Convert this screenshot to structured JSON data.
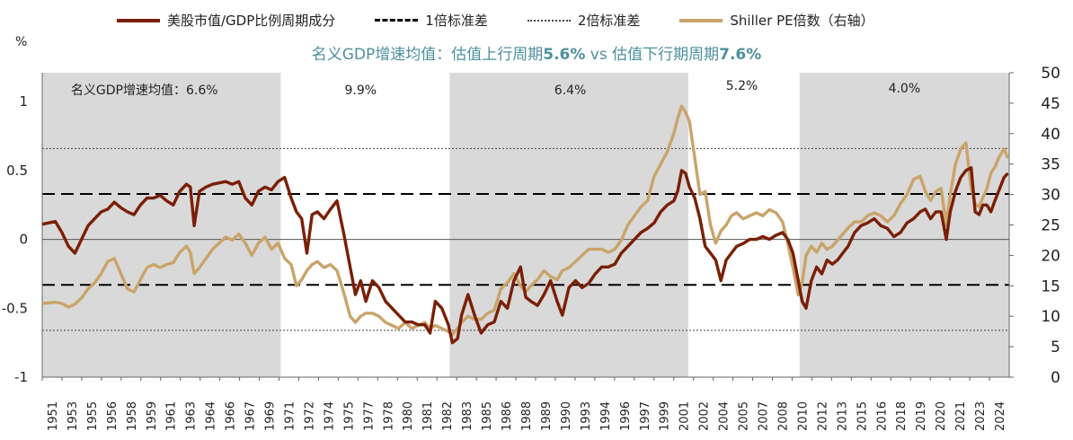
{
  "legend": {
    "mv_gdp": "美股市值/GDP比例周期成分",
    "sd1": "1倍标准差",
    "sd2": "2倍标准差",
    "shiller": "Shiller PE倍数（右轴）"
  },
  "subtitle": {
    "part1": "名义GDP增速均值：估值上行周期",
    "val1": "5.6%",
    "part2": " vs 估值下行期周期",
    "val2": "7.6%"
  },
  "y_unit": "%",
  "colors": {
    "mv_gdp": "#7a1f06",
    "shiller": "#c9a46a",
    "shade": "#d9d9d9",
    "subtitle": "#4d8f9e"
  },
  "chart_data": {
    "type": "line",
    "x_tick_labels": [
      "1951",
      "1953",
      "1955",
      "1956",
      "1958",
      "1959",
      "1961",
      "1963",
      "1964",
      "1966",
      "1967",
      "1969",
      "1971",
      "1972",
      "1974",
      "1975",
      "1977",
      "1978",
      "1980",
      "1981",
      "1982",
      "1983",
      "1985",
      "1986",
      "1988",
      "1989",
      "1990",
      "1993",
      "1994",
      "1996",
      "1997",
      "1999",
      "2001",
      "2002",
      "2004",
      "2005",
      "2007",
      "2008",
      "2010",
      "2012",
      "2013",
      "2015",
      "2016",
      "2018",
      "2019",
      "2020",
      "2021",
      "2023",
      "2024"
    ],
    "x_range": [
      1951,
      2024.8
    ],
    "y_left": {
      "ticks": [
        "1",
        "0.5",
        "0",
        "-0.5",
        "-1"
      ],
      "tick_values": [
        1,
        0.5,
        0,
        -0.5,
        -1
      ],
      "range": [
        -1,
        1.21
      ]
    },
    "y_right": {
      "ticks": [
        "50",
        "45",
        "40",
        "35",
        "30",
        "25",
        "20",
        "15",
        "10",
        "5",
        "0"
      ],
      "tick_values": [
        50,
        45,
        40,
        35,
        30,
        25,
        20,
        15,
        10,
        5,
        0
      ],
      "range": [
        0,
        50
      ]
    },
    "reference_lines": {
      "sd1": [
        0.33,
        -0.33
      ],
      "sd2": [
        0.66,
        -0.66
      ]
    },
    "shaded_periods": [
      {
        "start": 1951,
        "end": 1969.2,
        "label": "名义GDP增速均值：6.6%"
      },
      {
        "start": 1982.1,
        "end": 2000.3,
        "label": "6.4%"
      },
      {
        "start": 2008.8,
        "end": 2024.8,
        "label": "4.0%"
      }
    ],
    "unshaded_labels": [
      {
        "label": "9.9%"
      },
      {
        "label": "5.2%"
      }
    ],
    "series": [
      {
        "name": "美股市值/GDP比例周期成分",
        "axis": "left",
        "x": [
          1951.0,
          1951.5,
          1952.0,
          1952.5,
          1953.0,
          1953.5,
          1954.0,
          1954.5,
          1955.0,
          1955.5,
          1956.0,
          1956.5,
          1957.0,
          1957.5,
          1958.0,
          1958.5,
          1959.0,
          1959.5,
          1960.0,
          1960.5,
          1961.0,
          1961.5,
          1962.0,
          1962.3,
          1962.6,
          1963.0,
          1963.5,
          1964.0,
          1964.5,
          1965.0,
          1965.5,
          1966.0,
          1966.5,
          1967.0,
          1967.5,
          1968.0,
          1968.5,
          1969.0,
          1969.5,
          1970.0,
          1970.4,
          1970.8,
          1971.2,
          1971.6,
          1972.0,
          1972.5,
          1973.0,
          1973.5,
          1974.0,
          1974.5,
          1974.9,
          1975.3,
          1975.7,
          1976.2,
          1976.7,
          1977.2,
          1977.7,
          1978.2,
          1978.7,
          1979.2,
          1979.7,
          1980.2,
          1980.6,
          1981.0,
          1981.5,
          1982.0,
          1982.3,
          1982.7,
          1983.0,
          1983.5,
          1984.0,
          1984.5,
          1985.0,
          1985.5,
          1986.0,
          1986.5,
          1987.0,
          1987.5,
          1987.9,
          1988.3,
          1988.8,
          1989.3,
          1989.8,
          1990.3,
          1990.7,
          1991.2,
          1991.7,
          1992.2,
          1992.7,
          1993.2,
          1993.7,
          1994.2,
          1994.7,
          1995.2,
          1995.7,
          1996.2,
          1996.7,
          1997.2,
          1997.7,
          1998.2,
          1998.7,
          1999.2,
          1999.5,
          1999.8,
          2000.1,
          2000.4,
          2000.8,
          2001.2,
          2001.6,
          2002.0,
          2002.4,
          2002.8,
          2003.2,
          2003.6,
          2004.0,
          2004.5,
          2005.0,
          2005.5,
          2006.0,
          2006.5,
          2007.0,
          2007.5,
          2007.9,
          2008.3,
          2008.7,
          2009.0,
          2009.3,
          2009.7,
          2010.1,
          2010.5,
          2010.9,
          2011.3,
          2011.7,
          2012.1,
          2012.5,
          2013.0,
          2013.5,
          2014.0,
          2014.5,
          2015.0,
          2015.5,
          2016.0,
          2016.5,
          2017.0,
          2017.5,
          2018.0,
          2018.4,
          2018.8,
          2019.2,
          2019.6,
          2020.0,
          2020.3,
          2020.7,
          2021.1,
          2021.5,
          2021.9,
          2022.2,
          2022.5,
          2022.8,
          2023.1,
          2023.4,
          2023.7,
          2024.0,
          2024.4,
          2024.7
        ],
        "values": [
          0.11,
          0.12,
          0.13,
          0.05,
          -0.05,
          -0.1,
          0.0,
          0.1,
          0.15,
          0.2,
          0.22,
          0.27,
          0.23,
          0.2,
          0.18,
          0.25,
          0.3,
          0.3,
          0.32,
          0.28,
          0.25,
          0.35,
          0.4,
          0.38,
          0.1,
          0.35,
          0.38,
          0.4,
          0.41,
          0.42,
          0.4,
          0.42,
          0.3,
          0.25,
          0.35,
          0.38,
          0.36,
          0.42,
          0.45,
          0.3,
          0.2,
          0.15,
          -0.1,
          0.18,
          0.2,
          0.15,
          0.22,
          0.28,
          0.05,
          -0.2,
          -0.4,
          -0.3,
          -0.45,
          -0.3,
          -0.35,
          -0.45,
          -0.5,
          -0.55,
          -0.6,
          -0.6,
          -0.62,
          -0.62,
          -0.68,
          -0.45,
          -0.5,
          -0.62,
          -0.75,
          -0.72,
          -0.55,
          -0.4,
          -0.55,
          -0.68,
          -0.62,
          -0.6,
          -0.45,
          -0.5,
          -0.3,
          -0.2,
          -0.42,
          -0.45,
          -0.48,
          -0.4,
          -0.3,
          -0.45,
          -0.55,
          -0.35,
          -0.3,
          -0.35,
          -0.32,
          -0.25,
          -0.2,
          -0.2,
          -0.18,
          -0.1,
          -0.05,
          0.0,
          0.05,
          0.08,
          0.12,
          0.2,
          0.25,
          0.28,
          0.35,
          0.5,
          0.48,
          0.38,
          0.3,
          0.15,
          -0.05,
          -0.1,
          -0.15,
          -0.3,
          -0.15,
          -0.1,
          -0.05,
          -0.03,
          0.0,
          0.0,
          0.02,
          0.0,
          0.03,
          0.05,
          0.0,
          -0.1,
          -0.3,
          -0.45,
          -0.5,
          -0.3,
          -0.2,
          -0.25,
          -0.15,
          -0.18,
          -0.15,
          -0.1,
          -0.05,
          0.05,
          0.1,
          0.12,
          0.15,
          0.1,
          0.08,
          0.02,
          0.05,
          0.12,
          0.15,
          0.2,
          0.22,
          0.15,
          0.2,
          0.2,
          0.0,
          0.2,
          0.35,
          0.45,
          0.5,
          0.52,
          0.2,
          0.18,
          0.25,
          0.25,
          0.2,
          0.28,
          0.35,
          0.45,
          0.48
        ]
      },
      {
        "name": "Shiller PE倍数（右轴）",
        "axis": "right",
        "x": [
          1951.0,
          1951.5,
          1952.0,
          1952.5,
          1953.0,
          1953.5,
          1954.0,
          1954.5,
          1955.0,
          1955.5,
          1956.0,
          1956.5,
          1957.0,
          1957.5,
          1958.0,
          1958.5,
          1959.0,
          1959.5,
          1960.0,
          1960.5,
          1961.0,
          1961.5,
          1962.0,
          1962.3,
          1962.6,
          1963.0,
          1963.5,
          1964.0,
          1964.5,
          1965.0,
          1965.5,
          1966.0,
          1966.5,
          1967.0,
          1967.5,
          1968.0,
          1968.5,
          1969.0,
          1969.5,
          1970.0,
          1970.4,
          1970.8,
          1971.2,
          1971.6,
          1972.0,
          1972.5,
          1973.0,
          1973.5,
          1974.0,
          1974.5,
          1974.9,
          1975.3,
          1975.7,
          1976.2,
          1976.7,
          1977.2,
          1977.7,
          1978.2,
          1978.7,
          1979.2,
          1979.7,
          1980.2,
          1980.6,
          1981.0,
          1981.5,
          1982.0,
          1982.3,
          1982.7,
          1983.0,
          1983.5,
          1984.0,
          1984.5,
          1985.0,
          1985.5,
          1986.0,
          1986.5,
          1987.0,
          1987.5,
          1987.9,
          1988.3,
          1988.8,
          1989.3,
          1989.8,
          1990.3,
          1990.7,
          1991.2,
          1991.7,
          1992.2,
          1992.7,
          1993.2,
          1993.7,
          1994.2,
          1994.7,
          1995.2,
          1995.7,
          1996.2,
          1996.7,
          1997.2,
          1997.7,
          1998.2,
          1998.7,
          1999.2,
          1999.5,
          1999.8,
          2000.1,
          2000.4,
          2000.8,
          2001.2,
          2001.6,
          2002.0,
          2002.4,
          2002.8,
          2003.2,
          2003.6,
          2004.0,
          2004.5,
          2005.0,
          2005.5,
          2006.0,
          2006.5,
          2007.0,
          2007.5,
          2007.9,
          2008.3,
          2008.7,
          2009.0,
          2009.3,
          2009.7,
          2010.1,
          2010.5,
          2010.9,
          2011.3,
          2011.7,
          2012.1,
          2012.5,
          2013.0,
          2013.5,
          2014.0,
          2014.5,
          2015.0,
          2015.5,
          2016.0,
          2016.5,
          2017.0,
          2017.5,
          2018.0,
          2018.4,
          2018.8,
          2019.2,
          2019.6,
          2020.0,
          2020.3,
          2020.7,
          2021.1,
          2021.5,
          2021.9,
          2022.2,
          2022.5,
          2022.8,
          2023.1,
          2023.4,
          2023.7,
          2024.0,
          2024.4,
          2024.7
        ],
        "values": [
          12.1,
          12.2,
          12.3,
          12.1,
          11.5,
          12.0,
          13.0,
          14.5,
          15.5,
          17.0,
          19.0,
          19.5,
          17.0,
          14.5,
          14.0,
          16.0,
          18.0,
          18.5,
          18.0,
          18.5,
          18.8,
          20.5,
          21.5,
          20.5,
          17.0,
          18.0,
          19.5,
          21.0,
          22.0,
          23.0,
          22.5,
          23.5,
          22.0,
          20.0,
          22.0,
          23.0,
          21.0,
          22.0,
          19.5,
          18.5,
          15.0,
          16.0,
          17.5,
          18.5,
          19.0,
          18.0,
          18.5,
          17.5,
          14.0,
          10.0,
          9.0,
          10.0,
          10.5,
          10.5,
          10.0,
          9.0,
          8.5,
          8.0,
          9.0,
          8.0,
          8.5,
          9.0,
          8.0,
          8.5,
          8.0,
          7.5,
          7.0,
          8.0,
          9.0,
          10.0,
          9.5,
          9.5,
          10.5,
          11.0,
          14.5,
          15.5,
          17.0,
          15.0,
          14.0,
          15.0,
          16.0,
          17.5,
          16.5,
          16.0,
          17.5,
          18.0,
          19.0,
          20.0,
          21.0,
          21.0,
          21.0,
          20.5,
          21.0,
          22.5,
          25.0,
          26.5,
          28.0,
          29.0,
          33.0,
          35.0,
          37.0,
          40.0,
          42.5,
          44.5,
          43.5,
          42.0,
          36.0,
          30.0,
          30.5,
          25.0,
          22.0,
          24.0,
          25.0,
          26.5,
          27.0,
          26.0,
          26.5,
          27.0,
          26.5,
          27.5,
          27.0,
          25.5,
          22.0,
          18.0,
          13.5,
          15.5,
          20.0,
          21.5,
          20.5,
          22.0,
          21.0,
          21.5,
          22.5,
          23.5,
          24.5,
          25.5,
          25.5,
          26.5,
          27.0,
          26.5,
          25.5,
          26.5,
          28.5,
          30.0,
          32.5,
          33.0,
          30.5,
          29.0,
          30.5,
          31.0,
          25.0,
          30.0,
          35.0,
          37.5,
          38.5,
          31.0,
          28.5,
          28.0,
          29.5,
          31.0,
          33.5,
          34.5,
          36.0,
          37.5,
          36.0
        ]
      }
    ]
  }
}
